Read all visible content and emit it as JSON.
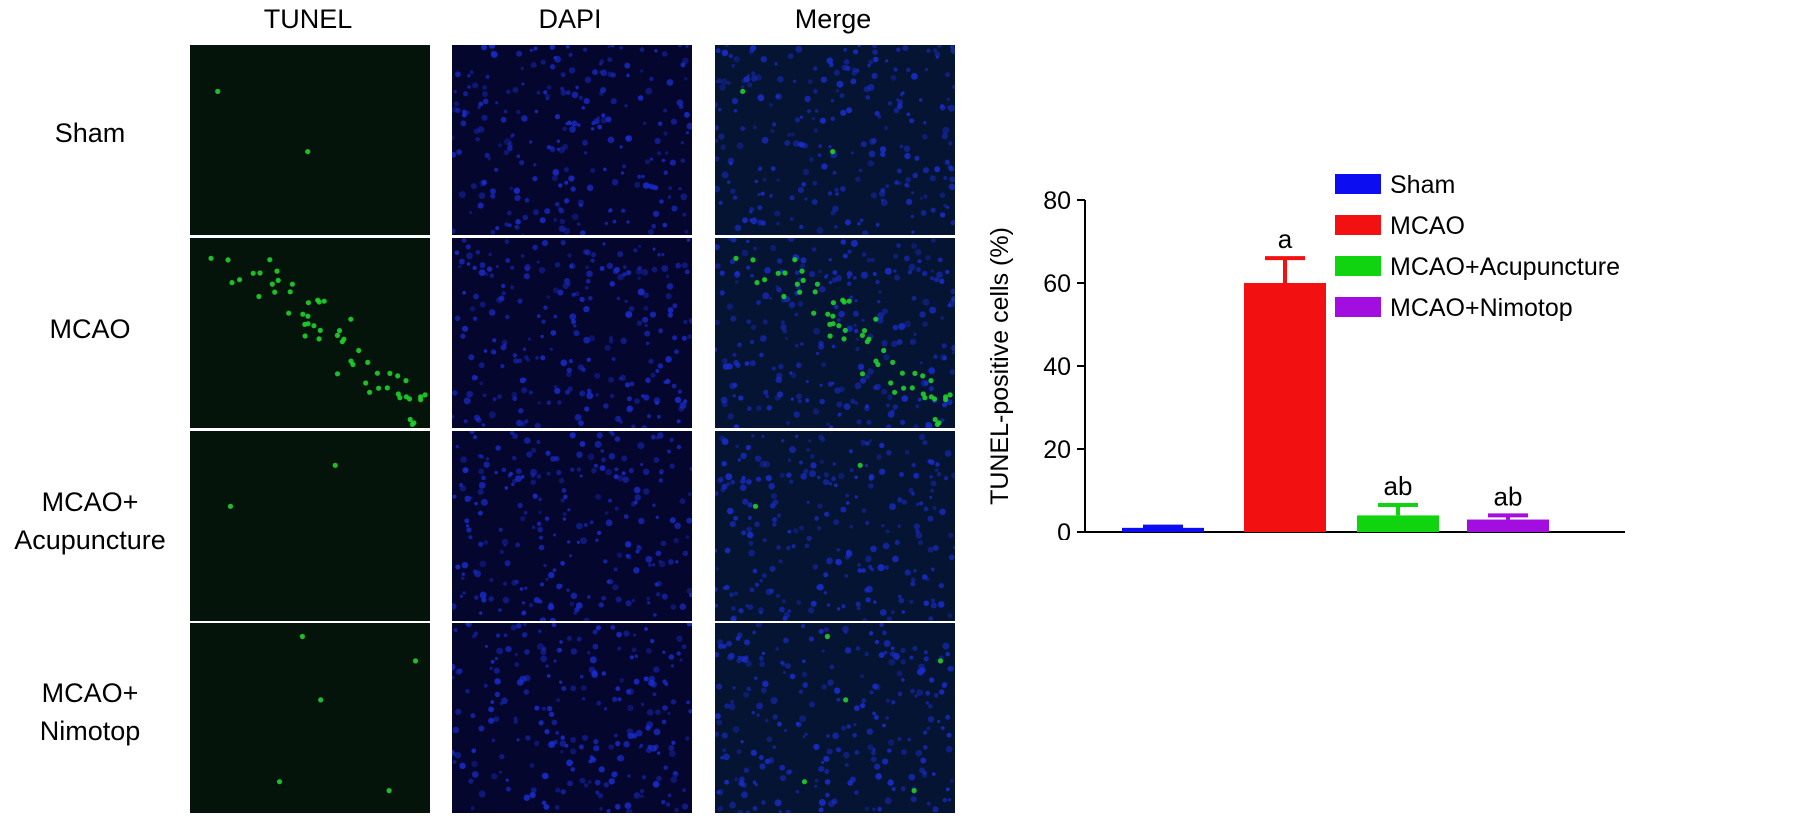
{
  "micrograph": {
    "columns": [
      "TUNEL",
      "DAPI",
      "Merge"
    ],
    "rows": [
      [
        "Sham"
      ],
      [
        "MCAO"
      ],
      [
        "MCAO+",
        "Acupuncture"
      ],
      [
        "MCAO+",
        "Nimotop"
      ]
    ],
    "colors": {
      "tunel": "#1fd12a",
      "dapi": "#1a2fd6"
    }
  },
  "chart_data": {
    "type": "bar",
    "title": "",
    "xlabel": "",
    "ylabel": "TUNEL-positive cells (%)",
    "ylim": [
      0,
      80
    ],
    "yticks": [
      0,
      20,
      40,
      60,
      80
    ],
    "categories": [
      "Sham",
      "MCAO",
      "MCAO+Acupuncture",
      "MCAO+Nimotop"
    ],
    "values": [
      1.0,
      60.0,
      4.0,
      3.0
    ],
    "errors": [
      0.3,
      6.0,
      2.5,
      1.0
    ],
    "annotations": [
      "",
      "a",
      "ab",
      "ab"
    ],
    "colors": [
      "#0d0df2",
      "#f21010",
      "#0fd40f",
      "#a30ee0"
    ],
    "legend": {
      "placement": "top-right",
      "entries": [
        "Sham",
        "MCAO",
        "MCAO+Acupuncture",
        "MCAO+Nimotop"
      ]
    },
    "grid": false
  }
}
